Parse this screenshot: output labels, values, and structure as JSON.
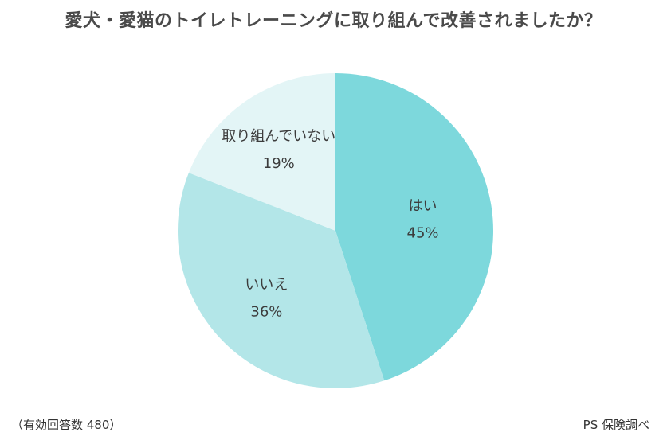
{
  "title": "愛犬・愛猫のトイレトレーニングに取り組んで改善されましたか？",
  "footnote_left": "（有効回答数 480）",
  "footnote_right": "PS 保険調べ",
  "chart_data": {
    "type": "pie",
    "title": "愛犬・愛猫のトイレトレーニングに取り組んで改善されましたか？",
    "start_angle_deg": 0,
    "direction": "clockwise",
    "slices": [
      {
        "label": "はい",
        "value": 45,
        "value_label": "45%",
        "color": "#7dd8dc"
      },
      {
        "label": "いいえ",
        "value": 36,
        "value_label": "36%",
        "color": "#b3e6e8"
      },
      {
        "label": "取り組んでいない",
        "value": 19,
        "value_label": "19%",
        "color": "#e3f5f6"
      }
    ]
  }
}
